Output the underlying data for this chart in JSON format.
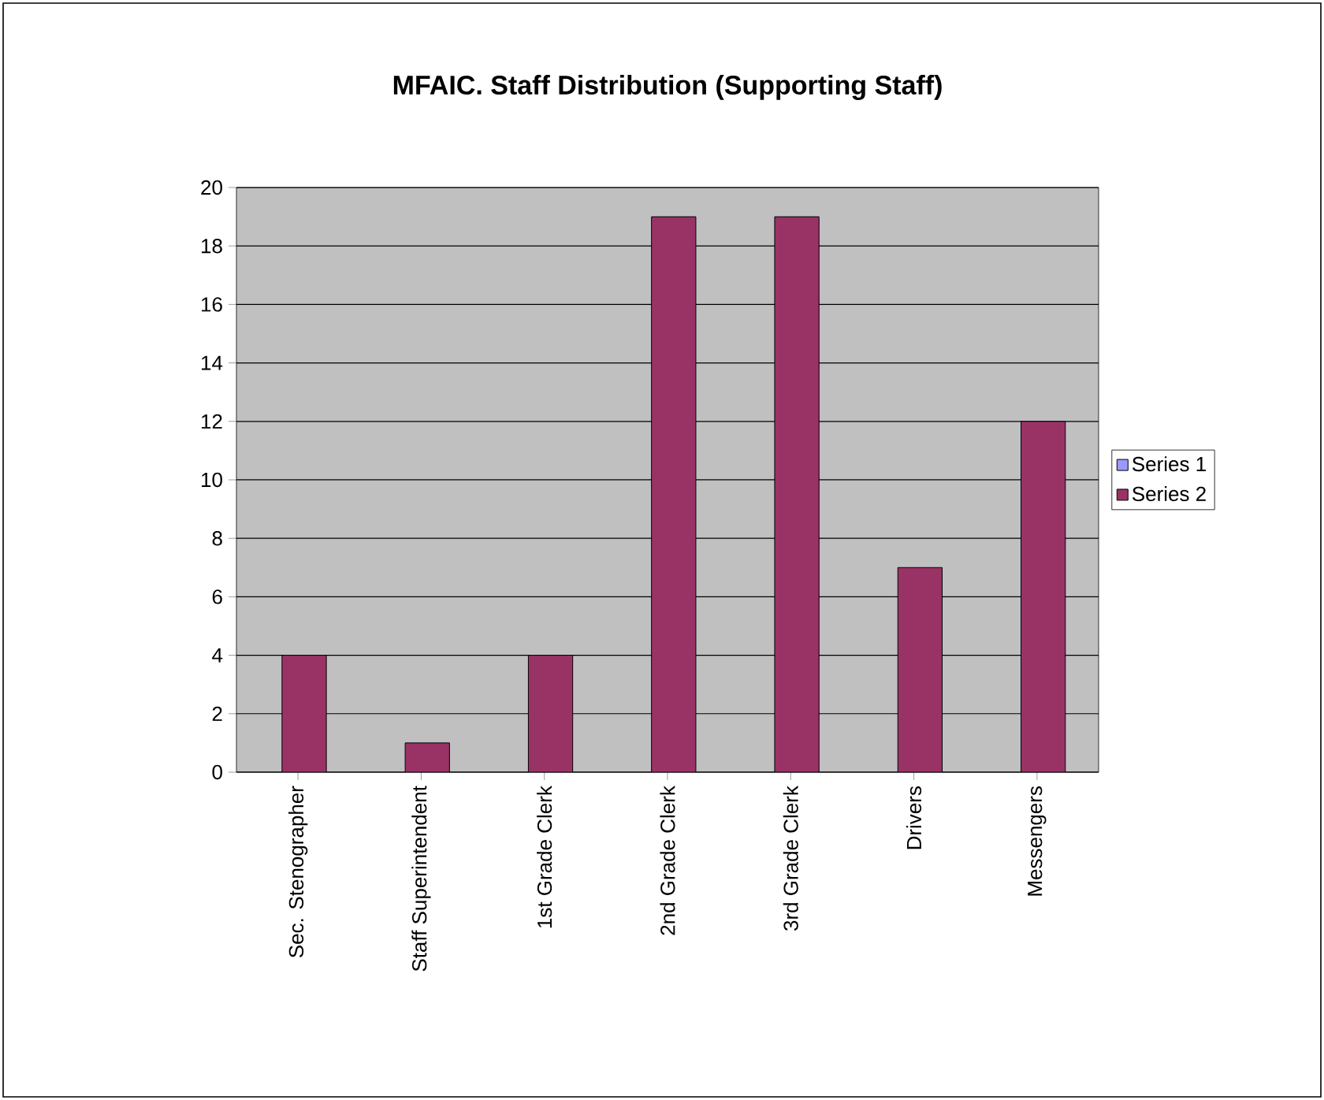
{
  "chart_data": {
    "type": "bar",
    "title": "MFAIC. Staff Distribution (Supporting Staff)",
    "categories": [
      "Sec. Stenographer",
      "Staff Superintendent",
      "1st Grade Clerk",
      "2nd Grade Clerk",
      "3rd Grade Clerk",
      "Drivers",
      "Messengers"
    ],
    "series": [
      {
        "name": "Series 1",
        "color": "#9999ff",
        "values": [
          null,
          null,
          null,
          null,
          null,
          null,
          null
        ]
      },
      {
        "name": "Series 2",
        "color": "#993366",
        "values": [
          4,
          1,
          4,
          19,
          19,
          7,
          12
        ]
      }
    ],
    "ylim": [
      0,
      20
    ],
    "yticks": [
      0,
      2,
      4,
      6,
      8,
      10,
      12,
      14,
      16,
      18,
      20
    ],
    "grid": "y",
    "legend": "right"
  }
}
